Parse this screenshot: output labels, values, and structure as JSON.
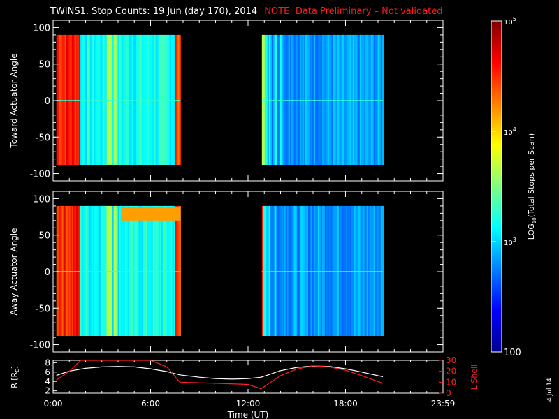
{
  "title": "TWINS1. Stop Counts: 19 Jun (day 170), 2014",
  "note": "NOTE: Data Preliminary – Not validated",
  "date_stamp": "4 Jul 14",
  "colors": {
    "background": "#000000",
    "axes": "#ffffff",
    "note": "#ff1a1a",
    "orbit_r": "#ffffff",
    "orbit_lshell": "#ff2020"
  },
  "chart_data": [
    {
      "type": "heatmap",
      "panel": "toward",
      "ylabel": "Toward Actuator Angle",
      "xlim": [
        0,
        24
      ],
      "ylim": [
        -110,
        110
      ],
      "yticks": [
        -100,
        -50,
        0,
        50,
        100
      ],
      "data_y_range": [
        -88,
        90
      ],
      "data_intervals_hours": [
        [
          0.2,
          7.85
        ],
        [
          12.85,
          20.3
        ]
      ],
      "grid": false
    },
    {
      "type": "heatmap",
      "panel": "away",
      "ylabel": "Away Actuator Angle",
      "xlim": [
        0,
        24
      ],
      "ylim": [
        -110,
        110
      ],
      "yticks": [
        -100,
        -50,
        0,
        50,
        100
      ],
      "data_y_range": [
        -88,
        90
      ],
      "data_intervals_hours": [
        [
          0.2,
          7.85
        ],
        [
          12.85,
          20.3
        ]
      ],
      "grid": false
    },
    {
      "type": "line",
      "panel": "orbit",
      "xlabel": "Time (UT)",
      "xlim": [
        0,
        24
      ],
      "xtick_labels": [
        "0:00",
        "6:00",
        "12:00",
        "18:00",
        "23:59"
      ],
      "xtick_hours": [
        0,
        6,
        12,
        18,
        24
      ],
      "left_axis": {
        "label": "R [R",
        "label_subscript": "E",
        "label_close": "]",
        "ylim": [
          1.5,
          8.5
        ],
        "ticks": [
          2,
          4,
          6,
          8
        ]
      },
      "right_axis": {
        "label": "L Shell",
        "ylim": [
          0,
          30
        ],
        "ticks": [
          0,
          10,
          20,
          30
        ]
      },
      "series": [
        {
          "axis": "left",
          "x": [
            0.2,
            1.0,
            2.0,
            3.0,
            4.0,
            5.0,
            6.0,
            7.0,
            7.8,
            9.0,
            10.0,
            11.0,
            12.0,
            12.8,
            14.0,
            15.0,
            16.0,
            17.0,
            18.0,
            19.0,
            20.3
          ],
          "y": [
            5.3,
            6.2,
            6.8,
            7.1,
            7.2,
            7.1,
            6.7,
            6.1,
            5.4,
            4.9,
            4.6,
            4.5,
            4.6,
            4.9,
            6.3,
            7.0,
            7.3,
            7.2,
            6.7,
            6.0,
            5.0
          ]
        },
        {
          "axis": "right",
          "x": [
            0.2,
            1.0,
            1.7,
            2.0,
            6.0,
            7.0,
            7.8,
            10.0,
            12.0,
            12.8,
            14.0,
            15.0,
            16.0,
            17.0,
            18.0,
            19.0,
            20.3
          ],
          "y": [
            12,
            20,
            31,
            31,
            31,
            24,
            10,
            9,
            8,
            4,
            16,
            22,
            25,
            24,
            21,
            16,
            9
          ]
        }
      ]
    }
  ],
  "colorbar": {
    "label_prefix": "LOG",
    "label_subscript": "10",
    "label_suffix": "(Total Stops per Scan)",
    "tick_values": [
      100,
      1000,
      10000,
      100000
    ],
    "tick_labels": [
      {
        "value": 100,
        "base": "100",
        "exp": ""
      },
      {
        "value": 1000,
        "base": "10",
        "exp": "3"
      },
      {
        "value": 10000,
        "base": "10",
        "exp": "4"
      },
      {
        "value": 100000,
        "base": "10",
        "exp": "5"
      }
    ],
    "range": [
      100,
      100000
    ],
    "scale": "log"
  }
}
